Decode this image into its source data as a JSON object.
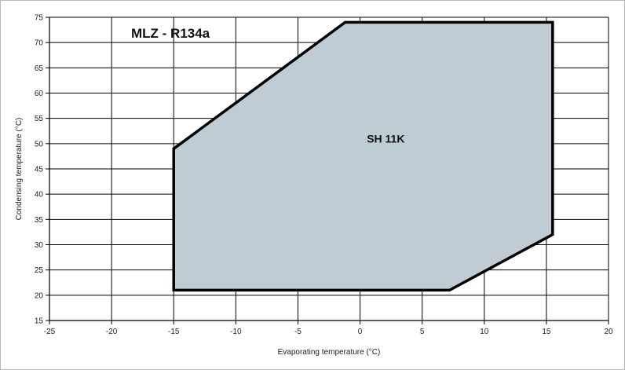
{
  "chart_data": {
    "type": "area",
    "title": "MLZ - R134a",
    "xlabel": "Evaporating temperature (°C)",
    "ylabel": "Condensing temperature (°C)",
    "xlim": [
      -25,
      20
    ],
    "ylim": [
      15,
      75
    ],
    "x_ticks": [
      -25,
      -20,
      -15,
      -10,
      -5,
      0,
      5,
      10,
      15,
      20
    ],
    "y_ticks": [
      15,
      20,
      25,
      30,
      35,
      40,
      45,
      50,
      55,
      60,
      65,
      70,
      75
    ],
    "x_tick_labels": [
      "-25",
      "-20",
      "-15",
      "-10",
      "-5",
      "0",
      "5",
      "10",
      "15",
      "20"
    ],
    "y_tick_labels": [
      "15",
      "20",
      "25",
      "30",
      "35",
      "40",
      "45",
      "50",
      "55",
      "60",
      "65",
      "70",
      "75"
    ],
    "grid": true,
    "series": [
      {
        "x": [
          -15,
          -15,
          -1.2,
          15.5,
          15.5,
          7.2,
          -15
        ],
        "y": [
          21,
          49,
          74,
          74,
          32,
          21,
          21
        ],
        "fill": "#c0ccd3",
        "stroke": "#000000"
      }
    ],
    "annotations": [
      {
        "text": "SH 11K",
        "x": 2,
        "y": 51
      }
    ]
  }
}
